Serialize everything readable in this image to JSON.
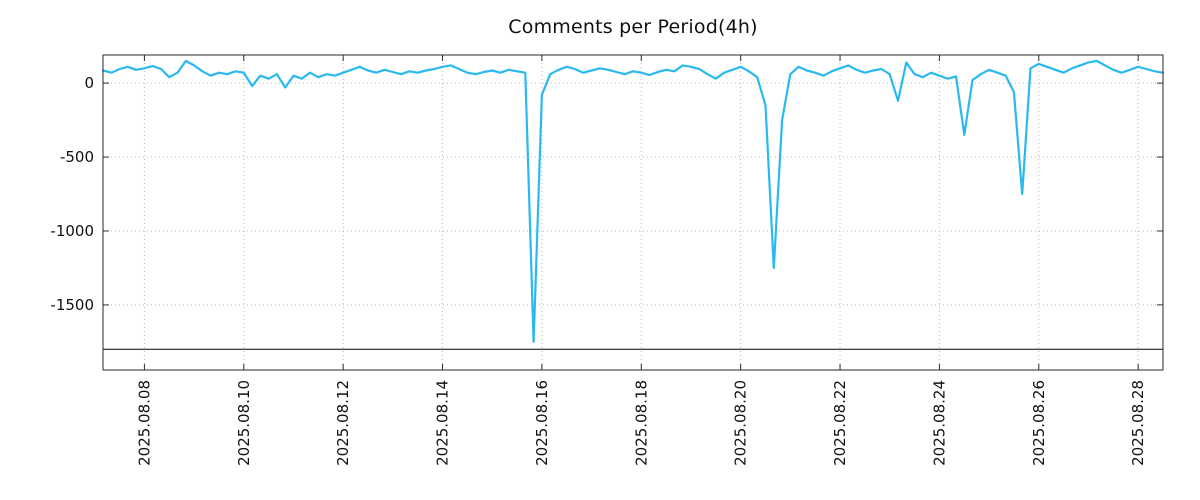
{
  "title": "Comments per Period(4h)",
  "colors": {
    "line": "#29b9f0",
    "grid": "#b8b8b8",
    "frame": "#2a2a2a",
    "reference_line": "#000000",
    "background": "#ffffff",
    "text": "#111111"
  },
  "chart_data": {
    "type": "line",
    "title": "Comments per Period(4h)",
    "x_start": "2025-08-07 04:00",
    "x_step_hours": 4,
    "values": [
      85,
      70,
      95,
      110,
      90,
      100,
      115,
      95,
      40,
      70,
      150,
      120,
      80,
      50,
      70,
      60,
      80,
      70,
      -20,
      50,
      30,
      60,
      -30,
      50,
      30,
      70,
      40,
      60,
      50,
      70,
      90,
      110,
      85,
      70,
      90,
      75,
      60,
      80,
      70,
      85,
      95,
      110,
      120,
      95,
      70,
      60,
      75,
      85,
      70,
      90,
      80,
      70,
      -1750,
      -80,
      60,
      90,
      110,
      95,
      70,
      85,
      100,
      90,
      75,
      60,
      80,
      70,
      55,
      75,
      90,
      80,
      120,
      110,
      95,
      60,
      30,
      70,
      90,
      110,
      80,
      40,
      -150,
      -1250,
      -250,
      60,
      110,
      85,
      70,
      50,
      80,
      100,
      120,
      90,
      70,
      85,
      95,
      60,
      -120,
      140,
      60,
      40,
      70,
      50,
      30,
      45,
      -350,
      20,
      60,
      90,
      70,
      50,
      -60,
      -750,
      100,
      130,
      110,
      90,
      70,
      100,
      120,
      140,
      150,
      120,
      90,
      70,
      90,
      110,
      95,
      80,
      70
    ],
    "x_tick_labels": [
      "2025.08.08",
      "2025.08.10",
      "2025.08.12",
      "2025.08.14",
      "2025.08.16",
      "2025.08.18",
      "2025.08.20",
      "2025.08.22",
      "2025.08.24",
      "2025.08.26",
      "2025.08.28"
    ],
    "x_tick_indices": [
      5,
      17,
      29,
      41,
      53,
      65,
      77,
      89,
      101,
      113,
      125
    ],
    "y_ticks": [
      0,
      -500,
      -1000,
      -1500
    ],
    "ylim": [
      -1940,
      190
    ],
    "reference_line_y": -1800,
    "grid": true,
    "legend": false,
    "xlabel": "",
    "ylabel": ""
  }
}
